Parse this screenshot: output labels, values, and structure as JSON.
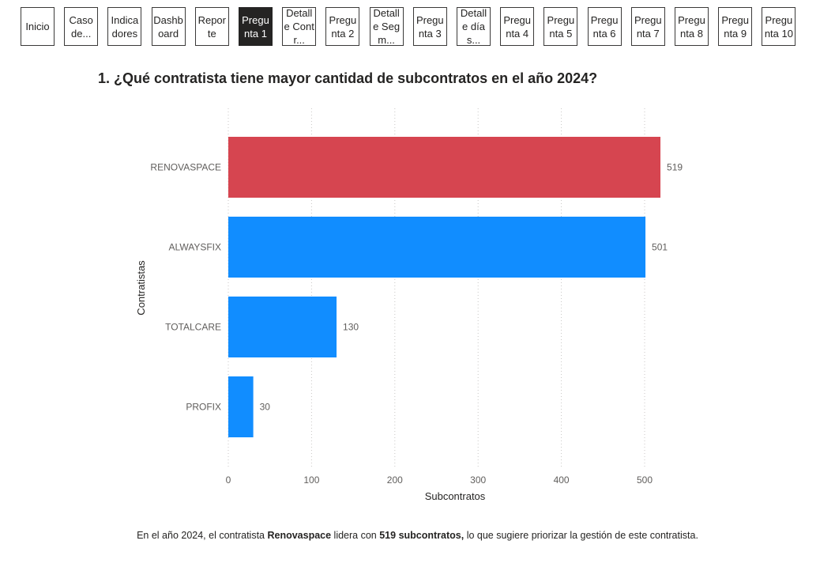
{
  "nav": {
    "buttons": [
      {
        "label": "Inicio",
        "active": false
      },
      {
        "label": "Caso de...",
        "active": false
      },
      {
        "label": "Indicadores",
        "active": false
      },
      {
        "label": "Dashboard",
        "active": false
      },
      {
        "label": "Reporte",
        "active": false
      },
      {
        "label": "Pregunta 1",
        "active": true
      },
      {
        "label": "Detalle Contr...",
        "active": false
      },
      {
        "label": "Pregunta 2",
        "active": false
      },
      {
        "label": "Detalle Segm...",
        "active": false
      },
      {
        "label": "Pregunta 3",
        "active": false
      },
      {
        "label": "Detalle días...",
        "active": false
      },
      {
        "label": "Pregunta 4",
        "active": false
      },
      {
        "label": "Pregunta 5",
        "active": false
      },
      {
        "label": "Pregunta 6",
        "active": false
      },
      {
        "label": "Pregunta 7",
        "active": false
      },
      {
        "label": "Pregunta 8",
        "active": false
      },
      {
        "label": "Pregunta 9",
        "active": false
      },
      {
        "label": "Pregunta 10",
        "active": false
      }
    ]
  },
  "chart_data": {
    "type": "bar",
    "orientation": "horizontal",
    "title": "1. ¿Qué contratista tiene mayor cantidad de subcontratos en el año 2024?",
    "xlabel": "Subcontratos",
    "ylabel": "Contratistas",
    "categories": [
      "RENOVASPACE",
      "ALWAYSFIX",
      "TOTALCARE",
      "PROFIX"
    ],
    "values": [
      519,
      501,
      130,
      30
    ],
    "data_labels": [
      "519",
      "501",
      "130",
      "30"
    ],
    "colors": [
      "#D64550",
      "#118DFF",
      "#118DFF",
      "#118DFF"
    ],
    "xlim": [
      0,
      550
    ],
    "xticks": [
      0,
      100,
      200,
      300,
      400,
      500
    ],
    "xtick_labels": [
      "0",
      "100",
      "200",
      "300",
      "400",
      "500"
    ],
    "grid": true
  },
  "footer": {
    "part1": "En el año 2024, el contratista ",
    "bold1": "Renovaspace",
    "part2": " lidera con ",
    "bold2": "519 subcontratos,",
    "part3": " lo que sugiere priorizar la gestión de este contratista."
  }
}
